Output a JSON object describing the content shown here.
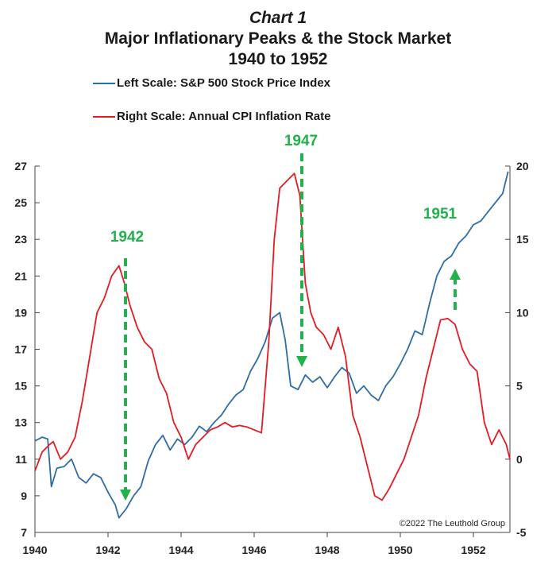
{
  "chart_data": {
    "type": "line",
    "title": "Chart 1",
    "subtitle": "Major Inflationary Peaks & the Stock Market",
    "subtitle2": "1940 to 1952",
    "x_ticks": [
      "1940",
      "1942",
      "1944",
      "1946",
      "1948",
      "1950",
      "1952"
    ],
    "x_range": [
      1940,
      1953
    ],
    "left_axis": {
      "range": [
        7,
        27
      ],
      "ticks": [
        "27",
        "25",
        "23",
        "21",
        "19",
        "17",
        "15",
        "13",
        "11",
        "9",
        "7"
      ]
    },
    "right_axis": {
      "range": [
        -5,
        20
      ],
      "ticks": [
        "20",
        "15",
        "10",
        "5",
        "0",
        "-5"
      ]
    },
    "legend_placement": "top-left",
    "grid": false,
    "series": [
      {
        "name": "Left Scale: S&P 500 Stock Price Index",
        "axis": "left",
        "color": "#2e6da4",
        "x": [
          1940.0,
          1940.2,
          1940.35,
          1940.45,
          1940.6,
          1940.8,
          1941.0,
          1941.2,
          1941.4,
          1941.6,
          1941.8,
          1942.0,
          1942.2,
          1942.3,
          1942.5,
          1942.7,
          1942.9,
          1943.1,
          1943.3,
          1943.5,
          1943.7,
          1943.9,
          1944.1,
          1944.3,
          1944.5,
          1944.7,
          1944.9,
          1945.1,
          1945.3,
          1945.5,
          1945.7,
          1945.9,
          1946.1,
          1946.3,
          1946.5,
          1946.7,
          1946.85,
          1947.0,
          1947.2,
          1947.4,
          1947.6,
          1947.8,
          1948.0,
          1948.2,
          1948.4,
          1948.6,
          1948.8,
          1949.0,
          1949.2,
          1949.4,
          1949.6,
          1949.8,
          1950.0,
          1950.2,
          1950.4,
          1950.6,
          1950.8,
          1951.0,
          1951.2,
          1951.4,
          1951.6,
          1951.8,
          1952.0,
          1952.2,
          1952.4,
          1952.6,
          1952.8,
          1952.95
        ],
        "values": [
          12.0,
          12.2,
          12.1,
          9.5,
          10.5,
          10.6,
          11.0,
          10.0,
          9.7,
          10.2,
          10.0,
          9.2,
          8.5,
          7.8,
          8.3,
          9.0,
          9.5,
          10.9,
          11.8,
          12.3,
          11.5,
          12.1,
          11.8,
          12.2,
          12.8,
          12.5,
          13.0,
          13.4,
          14.0,
          14.5,
          14.8,
          15.8,
          16.5,
          17.4,
          18.7,
          19.0,
          17.5,
          15.0,
          14.8,
          15.6,
          15.2,
          15.5,
          14.9,
          15.5,
          16.0,
          15.7,
          14.6,
          15.0,
          14.5,
          14.2,
          15.0,
          15.5,
          16.2,
          17.0,
          18.0,
          17.8,
          19.5,
          21.0,
          21.8,
          22.1,
          22.8,
          23.2,
          23.8,
          24.0,
          24.5,
          25.0,
          25.5,
          26.7
        ]
      },
      {
        "name": "Right Scale: Annual CPI Inflation Rate",
        "axis": "right",
        "color": "#e31b23",
        "x": [
          1940.0,
          1940.2,
          1940.4,
          1940.5,
          1940.7,
          1940.9,
          1941.1,
          1941.3,
          1941.5,
          1941.7,
          1941.9,
          1942.1,
          1942.3,
          1942.45,
          1942.6,
          1942.8,
          1943.0,
          1943.2,
          1943.4,
          1943.6,
          1943.8,
          1944.0,
          1944.2,
          1944.4,
          1944.6,
          1944.8,
          1945.0,
          1945.2,
          1945.4,
          1945.6,
          1945.8,
          1946.0,
          1946.2,
          1946.4,
          1946.55,
          1946.7,
          1946.9,
          1947.1,
          1947.25,
          1947.4,
          1947.55,
          1947.7,
          1947.9,
          1948.1,
          1948.3,
          1948.5,
          1948.7,
          1948.9,
          1949.1,
          1949.3,
          1949.5,
          1949.7,
          1949.9,
          1950.1,
          1950.3,
          1950.5,
          1950.7,
          1950.9,
          1951.1,
          1951.3,
          1951.5,
          1951.7,
          1951.9,
          1952.1,
          1952.3,
          1952.5,
          1952.7,
          1952.9,
          1953.0
        ],
        "values": [
          -0.8,
          0.5,
          1.0,
          1.2,
          0.0,
          0.5,
          1.5,
          4.0,
          7.0,
          10.0,
          11.0,
          12.5,
          13.2,
          12.0,
          10.5,
          9.0,
          8.0,
          7.5,
          5.5,
          4.5,
          2.5,
          1.5,
          0.0,
          1.0,
          1.5,
          2.0,
          2.2,
          2.5,
          2.2,
          2.3,
          2.2,
          2.0,
          1.8,
          8.0,
          15.0,
          18.5,
          19.0,
          19.5,
          18.0,
          12.0,
          10.0,
          9.0,
          8.5,
          7.5,
          9.0,
          7.0,
          3.0,
          1.5,
          -0.5,
          -2.5,
          -2.8,
          -2.0,
          -1.0,
          0.0,
          1.5,
          3.0,
          5.5,
          7.5,
          9.5,
          9.6,
          9.2,
          7.5,
          6.5,
          6.0,
          2.5,
          1.0,
          2.0,
          1.0,
          0.0
        ]
      }
    ],
    "annotations": [
      {
        "label": "1942",
        "direction": "down"
      },
      {
        "label": "1947",
        "direction": "down"
      },
      {
        "label": "1951",
        "direction": "up"
      }
    ],
    "source_note": "©2022 The Leuthold Group"
  }
}
